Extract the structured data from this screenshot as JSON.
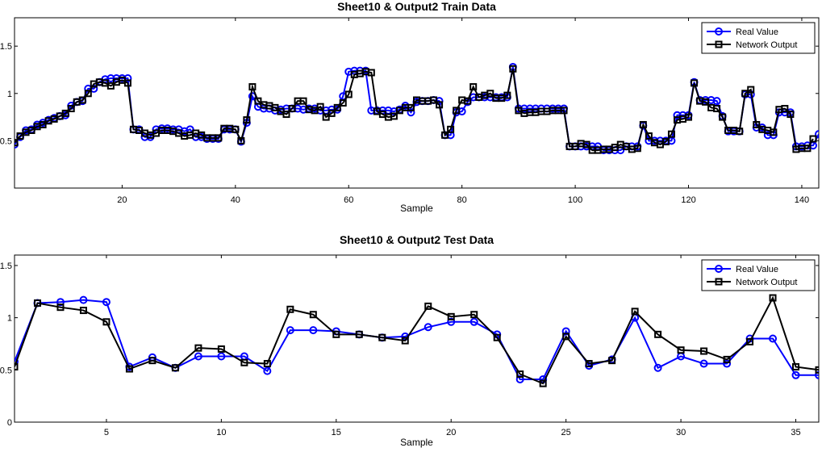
{
  "chart_data": [
    {
      "type": "line",
      "title": "Sheet10 & Output2 Train Data",
      "xlabel": "Sample",
      "ylabel": "",
      "xlim": [
        1,
        143
      ],
      "ylim": [
        0,
        1.8
      ],
      "xticks": [
        20,
        40,
        60,
        80,
        100,
        120,
        140
      ],
      "yticks": [
        0.5,
        1,
        1.5
      ],
      "ytick_labels": [
        "0.5",
        "1",
        "1.5"
      ],
      "legend_position": "top-right",
      "series": [
        {
          "name": "Real Value",
          "color": "#0000ff",
          "marker": "circle",
          "values": [
            0.46,
            0.54,
            0.61,
            0.62,
            0.67,
            0.69,
            0.72,
            0.74,
            0.76,
            0.77,
            0.87,
            0.91,
            0.92,
            1.05,
            1.05,
            1.12,
            1.15,
            1.16,
            1.16,
            1.16,
            1.16,
            0.62,
            0.62,
            0.54,
            0.54,
            0.62,
            0.63,
            0.63,
            0.62,
            0.62,
            0.6,
            0.62,
            0.54,
            0.54,
            0.52,
            0.52,
            0.52,
            0.62,
            0.62,
            0.62,
            0.49,
            0.69,
            0.97,
            0.86,
            0.84,
            0.84,
            0.82,
            0.83,
            0.84,
            0.84,
            0.84,
            0.83,
            0.84,
            0.84,
            0.82,
            0.82,
            0.83,
            0.83,
            0.97,
            1.23,
            1.24,
            1.24,
            1.24,
            0.82,
            0.82,
            0.82,
            0.82,
            0.81,
            0.83,
            0.87,
            0.8,
            0.91,
            0.92,
            0.92,
            0.93,
            0.92,
            0.56,
            0.56,
            0.8,
            0.81,
            0.91,
            0.96,
            0.96,
            0.96,
            0.96,
            0.96,
            0.96,
            0.96,
            1.28,
            0.84,
            0.84,
            0.84,
            0.84,
            0.84,
            0.84,
            0.84,
            0.84,
            0.84,
            0.44,
            0.44,
            0.44,
            0.44,
            0.44,
            0.44,
            0.4,
            0.4,
            0.4,
            0.4,
            0.44,
            0.44,
            0.44,
            0.66,
            0.5,
            0.5,
            0.5,
            0.5,
            0.5,
            0.77,
            0.77,
            0.77,
            1.12,
            0.93,
            0.93,
            0.93,
            0.92,
            0.76,
            0.6,
            0.6,
            0.6,
            0.99,
            0.99,
            0.64,
            0.64,
            0.56,
            0.56,
            0.8,
            0.8,
            0.8,
            0.44,
            0.44,
            0.45,
            0.45,
            0.57
          ]
        },
        {
          "name": "Network Output",
          "color": "#000000",
          "marker": "square",
          "values": [
            0.48,
            0.55,
            0.59,
            0.61,
            0.65,
            0.67,
            0.71,
            0.73,
            0.76,
            0.79,
            0.84,
            0.91,
            0.93,
            1.0,
            1.1,
            1.12,
            1.11,
            1.08,
            1.12,
            1.14,
            1.11,
            0.62,
            0.61,
            0.58,
            0.56,
            0.58,
            0.61,
            0.61,
            0.6,
            0.58,
            0.55,
            0.56,
            0.58,
            0.56,
            0.53,
            0.53,
            0.53,
            0.63,
            0.63,
            0.62,
            0.5,
            0.72,
            1.07,
            0.92,
            0.88,
            0.87,
            0.85,
            0.81,
            0.78,
            0.84,
            0.92,
            0.92,
            0.83,
            0.82,
            0.86,
            0.75,
            0.79,
            0.85,
            0.9,
            0.99,
            1.2,
            1.21,
            1.23,
            1.22,
            0.81,
            0.78,
            0.75,
            0.76,
            0.82,
            0.85,
            0.85,
            0.93,
            0.92,
            0.92,
            0.93,
            0.88,
            0.56,
            0.62,
            0.82,
            0.93,
            0.92,
            1.07,
            0.96,
            0.98,
            1.0,
            0.95,
            0.95,
            0.98,
            1.26,
            0.82,
            0.79,
            0.8,
            0.8,
            0.81,
            0.81,
            0.82,
            0.82,
            0.82,
            0.44,
            0.44,
            0.47,
            0.46,
            0.4,
            0.4,
            0.41,
            0.41,
            0.43,
            0.46,
            0.44,
            0.41,
            0.42,
            0.67,
            0.55,
            0.48,
            0.46,
            0.49,
            0.57,
            0.72,
            0.73,
            0.75,
            1.11,
            0.92,
            0.91,
            0.85,
            0.84,
            0.75,
            0.61,
            0.61,
            0.6,
            1.0,
            1.04,
            0.67,
            0.62,
            0.61,
            0.59,
            0.83,
            0.84,
            0.78,
            0.41,
            0.42,
            0.42,
            0.52
          ]
        }
      ]
    },
    {
      "type": "line",
      "title": "Sheet10 & Output2 Test Data",
      "xlabel": "Sample",
      "ylabel": "",
      "xlim": [
        1,
        36
      ],
      "ylim": [
        0,
        1.6
      ],
      "xticks": [
        5,
        10,
        15,
        20,
        25,
        30,
        35
      ],
      "yticks": [
        0,
        0.5,
        1,
        1.5
      ],
      "ytick_labels": [
        "0",
        "0.5",
        "1",
        "1.5"
      ],
      "legend_position": "top-right",
      "series": [
        {
          "name": "Real Value",
          "color": "#0000ff",
          "marker": "circle",
          "x": [
            1,
            2,
            3,
            4,
            5,
            6,
            7,
            8,
            9,
            10,
            11,
            12,
            13,
            14,
            15,
            16,
            17,
            18,
            19,
            20,
            21,
            22,
            23,
            24,
            25,
            26,
            27,
            28,
            29,
            30,
            31,
            32,
            33,
            34,
            35,
            36
          ],
          "values": [
            0.58,
            1.14,
            1.15,
            1.17,
            1.15,
            0.53,
            0.62,
            0.52,
            0.63,
            0.63,
            0.63,
            0.49,
            0.88,
            0.88,
            0.87,
            0.84,
            0.81,
            0.82,
            0.91,
            0.96,
            0.96,
            0.84,
            0.41,
            0.41,
            0.87,
            0.54,
            0.6,
            1.0,
            0.52,
            0.63,
            0.56,
            0.56,
            0.8,
            0.8,
            0.45,
            0.45
          ]
        },
        {
          "name": "Network Output",
          "color": "#000000",
          "marker": "square",
          "x": [
            1,
            2,
            3,
            4,
            5,
            6,
            7,
            8,
            9,
            10,
            11,
            12,
            13,
            14,
            15,
            16,
            17,
            18,
            19,
            20,
            21,
            22,
            23,
            24,
            25,
            26,
            27,
            28,
            29,
            30,
            31,
            32,
            33,
            34,
            35,
            36
          ],
          "values": [
            0.53,
            1.14,
            1.1,
            1.07,
            0.96,
            0.51,
            0.59,
            0.52,
            0.71,
            0.7,
            0.57,
            0.56,
            1.08,
            1.03,
            0.84,
            0.84,
            0.81,
            0.78,
            1.11,
            1.01,
            1.03,
            0.81,
            0.46,
            0.37,
            0.82,
            0.56,
            0.59,
            1.06,
            0.84,
            0.69,
            0.68,
            0.6,
            0.77,
            1.19,
            0.53,
            0.5
          ]
        }
      ]
    }
  ]
}
